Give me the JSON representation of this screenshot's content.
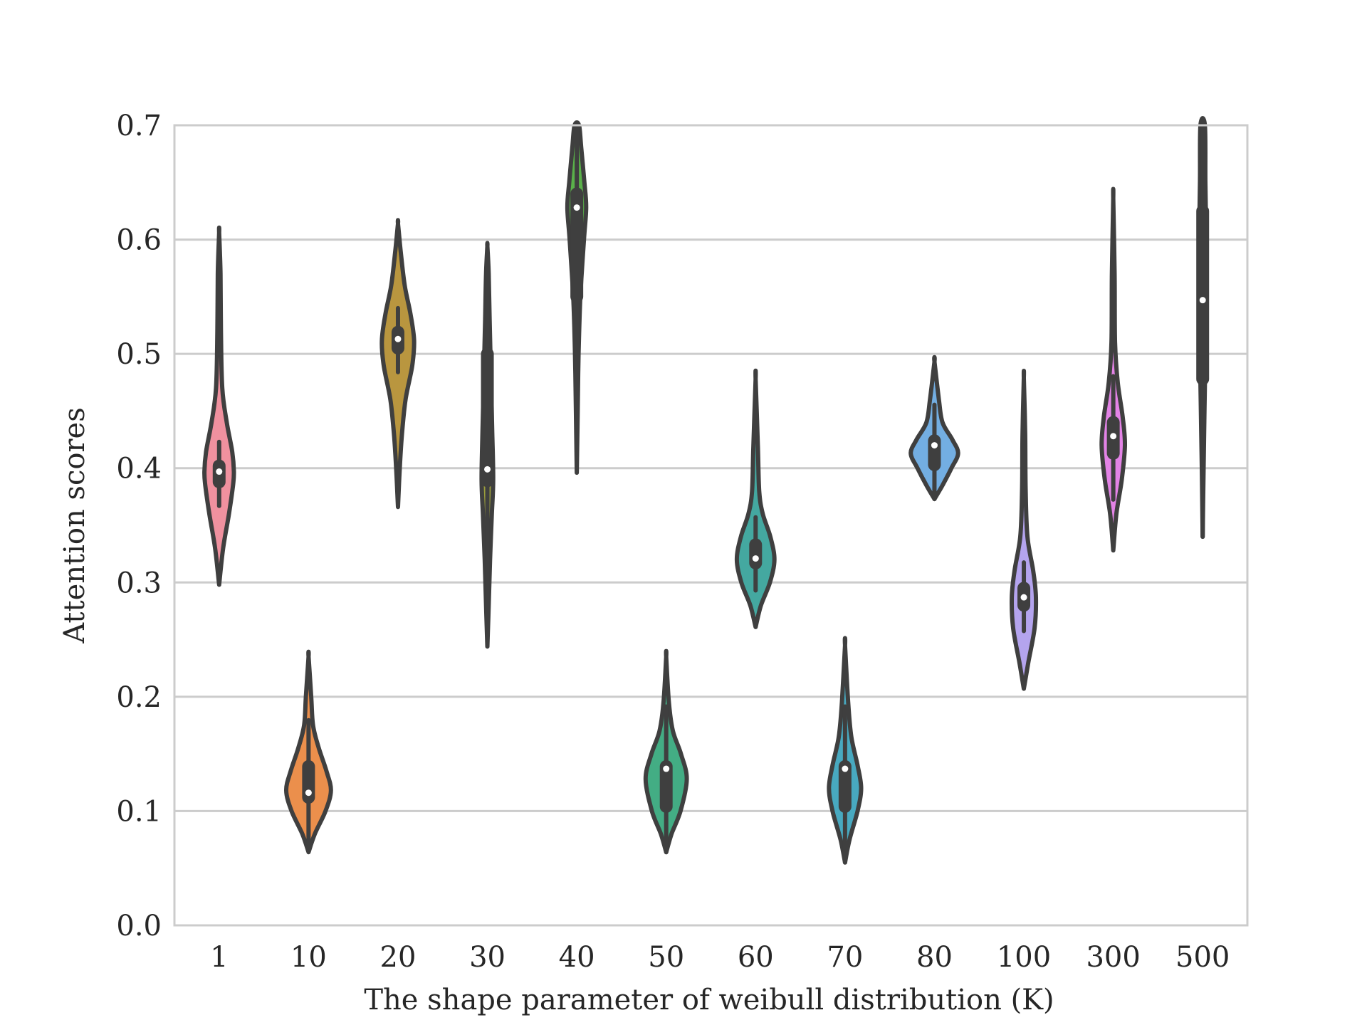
{
  "chart_data": {
    "type": "violin",
    "title": "",
    "xlabel": "The shape parameter of weibull distribution (K)",
    "ylabel": "Attention scores",
    "ylim": [
      0.0,
      0.7
    ],
    "yticks": [
      "0.0",
      "0.1",
      "0.2",
      "0.3",
      "0.4",
      "0.5",
      "0.6",
      "0.7"
    ],
    "grid": "horizontal",
    "categories": [
      "1",
      "10",
      "20",
      "30",
      "40",
      "50",
      "60",
      "70",
      "80",
      "100",
      "300",
      "500"
    ],
    "colors": [
      "#f0919f",
      "#eb8f4c",
      "#b9963f",
      "#9a9d3c",
      "#5ab04a",
      "#43ad84",
      "#44a8a0",
      "#48a9c0",
      "#73aee2",
      "#b4a4ee",
      "#e383e6",
      "#f28bc3"
    ],
    "series": [
      {
        "category": "1",
        "min": 0.298,
        "max": 0.606,
        "q1": 0.388,
        "median": 0.397,
        "q3": 0.402,
        "profile": [
          [
            0.298,
            0
          ],
          [
            0.33,
            0.09
          ],
          [
            0.36,
            0.22
          ],
          [
            0.385,
            0.31
          ],
          [
            0.397,
            0.33
          ],
          [
            0.415,
            0.29
          ],
          [
            0.44,
            0.17
          ],
          [
            0.47,
            0.07
          ],
          [
            0.52,
            0.04
          ],
          [
            0.57,
            0.03
          ],
          [
            0.606,
            0
          ]
        ]
      },
      {
        "category": "10",
        "min": 0.064,
        "max": 0.235,
        "q1": 0.112,
        "median": 0.116,
        "q3": 0.139,
        "profile": [
          [
            0.064,
            0
          ],
          [
            0.08,
            0.14
          ],
          [
            0.1,
            0.38
          ],
          [
            0.118,
            0.5
          ],
          [
            0.135,
            0.4
          ],
          [
            0.155,
            0.23
          ],
          [
            0.175,
            0.1
          ],
          [
            0.2,
            0.06
          ],
          [
            0.235,
            0
          ]
        ]
      },
      {
        "category": "20",
        "min": 0.366,
        "max": 0.614,
        "q1": 0.505,
        "median": 0.513,
        "q3": 0.519,
        "profile": [
          [
            0.366,
            0
          ],
          [
            0.4,
            0.04
          ],
          [
            0.43,
            0.09
          ],
          [
            0.46,
            0.17
          ],
          [
            0.49,
            0.32
          ],
          [
            0.512,
            0.36
          ],
          [
            0.535,
            0.28
          ],
          [
            0.56,
            0.15
          ],
          [
            0.59,
            0.06
          ],
          [
            0.614,
            0
          ]
        ]
      },
      {
        "category": "30",
        "min": 0.244,
        "max": 0.594,
        "q1": 0.389,
        "median": 0.399,
        "q3": 0.5,
        "profile": [
          [
            0.244,
            0
          ],
          [
            0.28,
            0.03
          ],
          [
            0.32,
            0.06
          ],
          [
            0.36,
            0.1
          ],
          [
            0.39,
            0.13
          ],
          [
            0.43,
            0.11
          ],
          [
            0.48,
            0.08
          ],
          [
            0.53,
            0.05
          ],
          [
            0.57,
            0.03
          ],
          [
            0.594,
            0
          ]
        ]
      },
      {
        "category": "40",
        "min": 0.396,
        "max": 0.7,
        "q1": 0.55,
        "median": 0.628,
        "q3": 0.64,
        "profile": [
          [
            0.396,
            0
          ],
          [
            0.45,
            0.02
          ],
          [
            0.5,
            0.04
          ],
          [
            0.55,
            0.08
          ],
          [
            0.6,
            0.16
          ],
          [
            0.628,
            0.21
          ],
          [
            0.65,
            0.17
          ],
          [
            0.68,
            0.1
          ],
          [
            0.7,
            0.05
          ]
        ]
      },
      {
        "category": "50",
        "min": 0.064,
        "max": 0.235,
        "q1": 0.104,
        "median": 0.137,
        "q3": 0.139,
        "profile": [
          [
            0.064,
            0
          ],
          [
            0.08,
            0.12
          ],
          [
            0.1,
            0.32
          ],
          [
            0.128,
            0.46
          ],
          [
            0.15,
            0.33
          ],
          [
            0.17,
            0.15
          ],
          [
            0.195,
            0.06
          ],
          [
            0.235,
            0
          ]
        ]
      },
      {
        "category": "60",
        "min": 0.261,
        "max": 0.478,
        "q1": 0.317,
        "median": 0.321,
        "q3": 0.333,
        "profile": [
          [
            0.261,
            0
          ],
          [
            0.28,
            0.12
          ],
          [
            0.3,
            0.32
          ],
          [
            0.32,
            0.42
          ],
          [
            0.34,
            0.33
          ],
          [
            0.36,
            0.16
          ],
          [
            0.38,
            0.08
          ],
          [
            0.42,
            0.05
          ],
          [
            0.478,
            0
          ]
        ]
      },
      {
        "category": "70",
        "min": 0.055,
        "max": 0.245,
        "q1": 0.104,
        "median": 0.137,
        "q3": 0.139,
        "profile": [
          [
            0.055,
            0
          ],
          [
            0.075,
            0.1
          ],
          [
            0.1,
            0.28
          ],
          [
            0.12,
            0.36
          ],
          [
            0.14,
            0.28
          ],
          [
            0.165,
            0.14
          ],
          [
            0.195,
            0.07
          ],
          [
            0.245,
            0
          ]
        ]
      },
      {
        "category": "80",
        "min": 0.373,
        "max": 0.493,
        "q1": 0.403,
        "median": 0.42,
        "q3": 0.424,
        "profile": [
          [
            0.373,
            0
          ],
          [
            0.385,
            0.18
          ],
          [
            0.4,
            0.38
          ],
          [
            0.413,
            0.53
          ],
          [
            0.425,
            0.4
          ],
          [
            0.44,
            0.18
          ],
          [
            0.46,
            0.1
          ],
          [
            0.493,
            0
          ]
        ]
      },
      {
        "category": "100",
        "min": 0.207,
        "max": 0.479,
        "q1": 0.28,
        "median": 0.287,
        "q3": 0.295,
        "profile": [
          [
            0.207,
            0
          ],
          [
            0.23,
            0.1
          ],
          [
            0.26,
            0.24
          ],
          [
            0.287,
            0.27
          ],
          [
            0.31,
            0.21
          ],
          [
            0.34,
            0.08
          ],
          [
            0.38,
            0.04
          ],
          [
            0.43,
            0.03
          ],
          [
            0.479,
            0
          ]
        ]
      },
      {
        "category": "300",
        "min": 0.328,
        "max": 0.636,
        "q1": 0.413,
        "median": 0.428,
        "q3": 0.44,
        "profile": [
          [
            0.328,
            0
          ],
          [
            0.36,
            0.07
          ],
          [
            0.39,
            0.19
          ],
          [
            0.42,
            0.26
          ],
          [
            0.445,
            0.21
          ],
          [
            0.475,
            0.1
          ],
          [
            0.51,
            0.04
          ],
          [
            0.57,
            0.03
          ],
          [
            0.636,
            0
          ]
        ]
      },
      {
        "category": "500",
        "min": 0.34,
        "max": 0.7,
        "q1": 0.478,
        "median": 0.547,
        "q3": 0.625,
        "profile": [
          [
            0.34,
            0
          ],
          [
            0.4,
            0.02
          ],
          [
            0.45,
            0.04
          ],
          [
            0.5,
            0.06
          ],
          [
            0.55,
            0.08
          ],
          [
            0.6,
            0.08
          ],
          [
            0.65,
            0.06
          ],
          [
            0.7,
            0.05
          ]
        ]
      }
    ]
  }
}
